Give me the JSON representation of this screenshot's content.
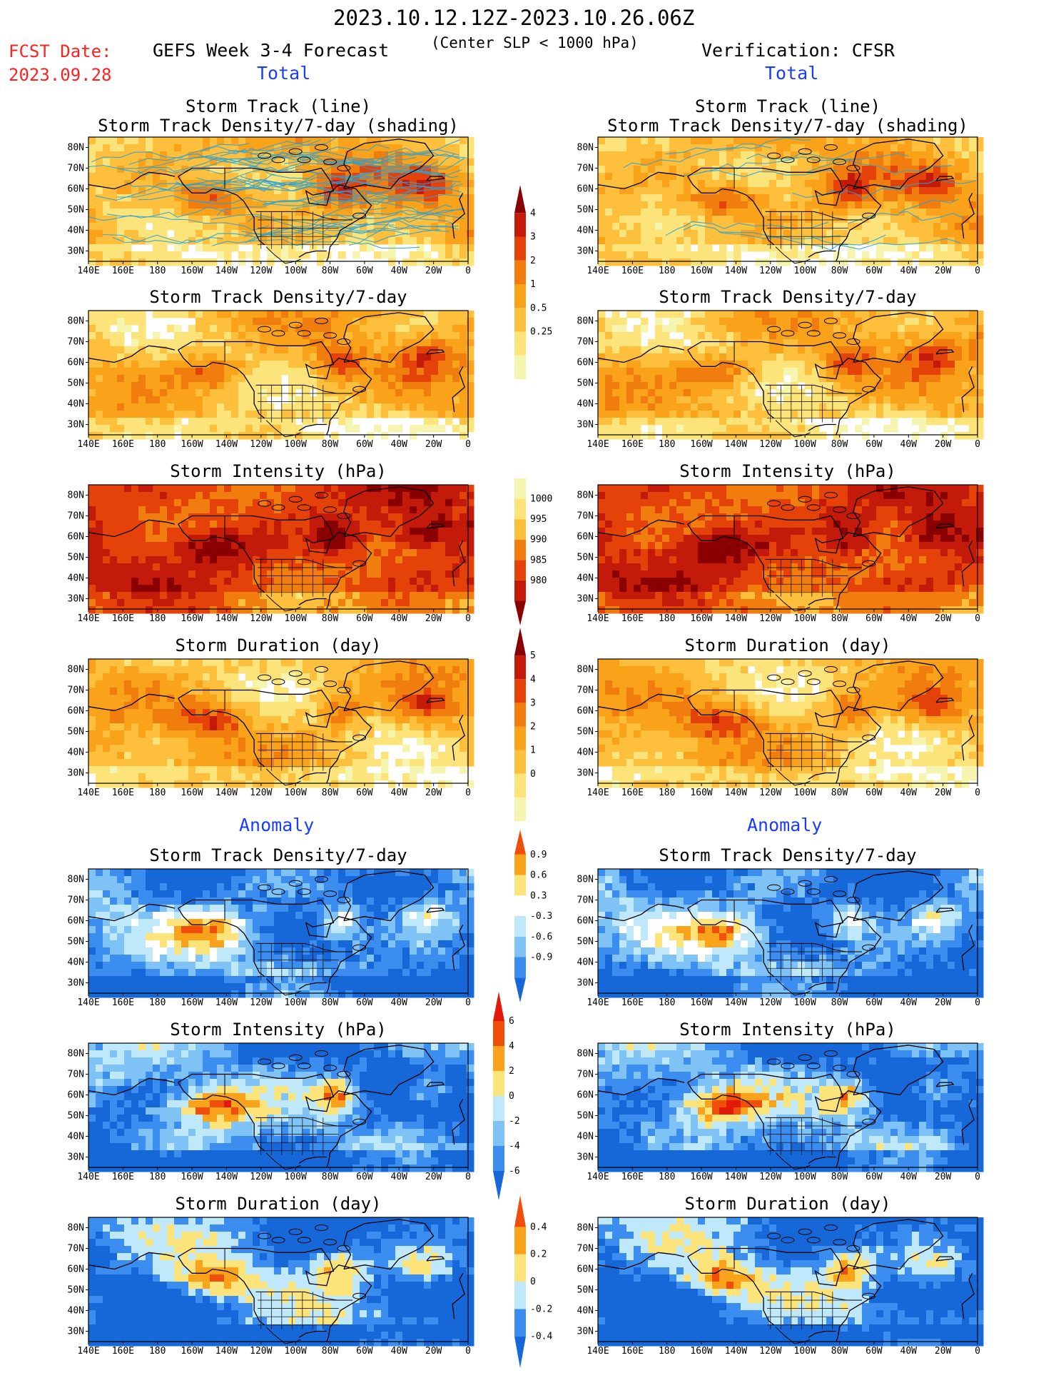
{
  "header": {
    "period": "2023.10.12.12Z-2023.10.26.06Z",
    "model": "GEFS Week 3-4 Forecast",
    "condition": "(Center SLP < 1000 hPa)",
    "verification": "Verification: CFSR",
    "fcst_label": "FCST Date:",
    "fcst_date": "2023.09.28"
  },
  "sections": {
    "total_left": "Total",
    "total_right": "Total",
    "anomaly_left": "Anomaly",
    "anomaly_right": "Anomaly"
  },
  "panels": [
    {
      "id": "ft1",
      "title": "Storm Track (line)\nStorm Track Density/7-day (shading)",
      "scale": "dens",
      "tracks": true,
      "seed": 11
    },
    {
      "id": "ot1",
      "title": "Storm Track (line)\nStorm Track Density/7-day (shading)",
      "scale": "dens",
      "tracks": true,
      "seed": 12
    },
    {
      "id": "ft2",
      "title": "Storm Track Density/7-day",
      "scale": "dens",
      "seed": 21
    },
    {
      "id": "ot2",
      "title": "Storm Track Density/7-day",
      "scale": "dens",
      "seed": 22
    },
    {
      "id": "ft3",
      "title": "Storm Intensity (hPa)",
      "scale": "int",
      "seed": 31
    },
    {
      "id": "ot3",
      "title": "Storm Intensity (hPa)",
      "scale": "int",
      "seed": 32
    },
    {
      "id": "ft4",
      "title": "Storm Duration (day)",
      "scale": "dur",
      "seed": 41
    },
    {
      "id": "ot4",
      "title": "Storm Duration (day)",
      "scale": "dur",
      "seed": 42
    },
    {
      "id": "fa1",
      "title": "Storm Track Density/7-day",
      "scale": "adens",
      "seed": 51
    },
    {
      "id": "oa1",
      "title": "Storm Track Density/7-day",
      "scale": "adens",
      "seed": 52
    },
    {
      "id": "fa2",
      "title": "Storm Intensity (hPa)",
      "scale": "aint",
      "seed": 61
    },
    {
      "id": "oa2",
      "title": "Storm Intensity (hPa)",
      "scale": "aint",
      "seed": 62
    },
    {
      "id": "fa3",
      "title": "Storm Duration (day)",
      "scale": "adur",
      "seed": 71
    },
    {
      "id": "oa3",
      "title": "Storm Duration (day)",
      "scale": "adur",
      "seed": 72
    }
  ],
  "lon_labels": [
    "140E",
    "160E",
    "180",
    "160W",
    "140W",
    "120W",
    "100W",
    "80W",
    "60W",
    "40W",
    "20W",
    "0"
  ],
  "lat_labels": [
    "80N",
    "70N",
    "60N",
    "50N",
    "40N",
    "30N"
  ],
  "colorbars": {
    "dens": {
      "labels": [
        "4",
        "3",
        "2",
        "1",
        "0.5",
        "0.25"
      ],
      "colors": [
        "#f5f5b0",
        "#fde47a",
        "#fdbf3c",
        "#f9a21a",
        "#f07d0d",
        "#e5420a",
        "#c41a0a",
        "#8a0000"
      ]
    },
    "int": {
      "labels": [
        "1000",
        "995",
        "990",
        "985",
        "980"
      ],
      "colors": [
        "#8a0000",
        "#c41a0a",
        "#e5420a",
        "#f07d0d",
        "#fdbf3c",
        "#fde47a",
        "#f5f5b0"
      ]
    },
    "dur": {
      "labels": [
        "5",
        "4",
        "3",
        "2",
        "1",
        "0"
      ],
      "colors": [
        "#f5f5b0",
        "#fde47a",
        "#fdbf3c",
        "#f9a21a",
        "#f07d0d",
        "#e5420a",
        "#c41a0a",
        "#8a0000"
      ]
    },
    "adens": {
      "labels": [
        "0.9",
        "0.6",
        "0.3",
        "-0.3",
        "-0.6",
        "-0.9"
      ],
      "colors": [
        "#1668d8",
        "#3b8ef0",
        "#7fc2f5",
        "#bfe8fb",
        "#ffffff",
        "#fde47a",
        "#f9a21a",
        "#f04e0a"
      ]
    },
    "aint": {
      "labels": [
        "6",
        "4",
        "2",
        "0",
        "-2",
        "-4",
        "-6"
      ],
      "colors": [
        "#1668d8",
        "#3b8ef0",
        "#7fc2f5",
        "#bfe8fb",
        "#fde47a",
        "#f9a21a",
        "#f04e0a",
        "#e11a0a"
      ]
    },
    "adur": {
      "labels": [
        "0.4",
        "0.2",
        "0",
        "-0.2",
        "-0.4"
      ],
      "colors": [
        "#1668d8",
        "#3b8ef0",
        "#bfe8fb",
        "#fde47a",
        "#f9a21a",
        "#f04e0a"
      ]
    }
  },
  "legend_colors": {
    "track_line": "#29a3d6",
    "coast": "#000000"
  }
}
